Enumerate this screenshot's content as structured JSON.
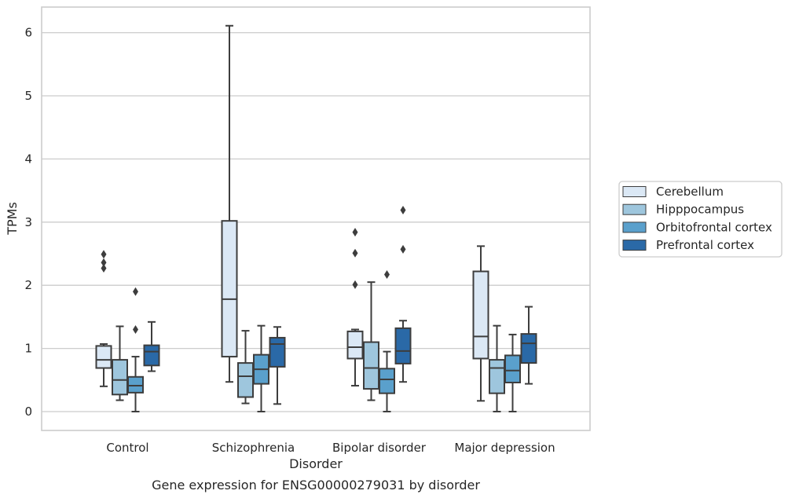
{
  "chart_data": {
    "type": "box",
    "caption": "Gene expression for ENSG00000279031 by disorder",
    "xlabel": "Disorder",
    "ylabel": "TPMs",
    "ylim": [
      -0.3,
      6.4
    ],
    "yticks": [
      0,
      1,
      2,
      3,
      4,
      5,
      6
    ],
    "grid": true,
    "legend_position": "right",
    "categories": [
      "Control",
      "Schizophrenia",
      "Bipolar disorder",
      "Major depression"
    ],
    "series": [
      {
        "name": "Cerebellum",
        "color": "#dbe8f5",
        "boxes": [
          {
            "whislo": 0.4,
            "q1": 0.69,
            "med": 0.82,
            "q3": 1.04,
            "whishi": 1.07,
            "fliers": [
              2.49,
              2.36,
              2.27
            ]
          },
          {
            "whislo": 0.47,
            "q1": 0.87,
            "med": 1.78,
            "q3": 3.02,
            "whishi": 6.11,
            "fliers": []
          },
          {
            "whislo": 0.41,
            "q1": 0.84,
            "med": 1.02,
            "q3": 1.27,
            "whishi": 1.3,
            "fliers": [
              2.84,
              2.51,
              2.01
            ]
          },
          {
            "whislo": 0.17,
            "q1": 0.84,
            "med": 1.19,
            "q3": 2.22,
            "whishi": 2.62,
            "fliers": []
          }
        ]
      },
      {
        "name": "Hipppocampus",
        "color": "#9ec6dd",
        "boxes": [
          {
            "whislo": 0.18,
            "q1": 0.27,
            "med": 0.5,
            "q3": 0.82,
            "whishi": 1.35,
            "fliers": []
          },
          {
            "whislo": 0.13,
            "q1": 0.23,
            "med": 0.56,
            "q3": 0.77,
            "whishi": 1.28,
            "fliers": []
          },
          {
            "whislo": 0.18,
            "q1": 0.36,
            "med": 0.69,
            "q3": 1.1,
            "whishi": 2.05,
            "fliers": []
          },
          {
            "whislo": 0.0,
            "q1": 0.29,
            "med": 0.69,
            "q3": 0.82,
            "whishi": 1.36,
            "fliers": []
          }
        ]
      },
      {
        "name": "Orbitofrontal cortex",
        "color": "#5aa0cc",
        "boxes": [
          {
            "whislo": 0.0,
            "q1": 0.3,
            "med": 0.41,
            "q3": 0.55,
            "whishi": 0.87,
            "fliers": [
              1.9,
              1.3
            ]
          },
          {
            "whislo": 0.0,
            "q1": 0.44,
            "med": 0.67,
            "q3": 0.9,
            "whishi": 1.36,
            "fliers": []
          },
          {
            "whislo": 0.0,
            "q1": 0.29,
            "med": 0.51,
            "q3": 0.68,
            "whishi": 0.95,
            "fliers": [
              2.17
            ]
          },
          {
            "whislo": 0.0,
            "q1": 0.46,
            "med": 0.65,
            "q3": 0.89,
            "whishi": 1.22,
            "fliers": []
          }
        ]
      },
      {
        "name": "Prefrontal cortex",
        "color": "#2a69a7",
        "boxes": [
          {
            "whislo": 0.64,
            "q1": 0.73,
            "med": 0.95,
            "q3": 1.05,
            "whishi": 1.42,
            "fliers": []
          },
          {
            "whislo": 0.12,
            "q1": 0.71,
            "med": 1.07,
            "q3": 1.17,
            "whishi": 1.34,
            "fliers": []
          },
          {
            "whislo": 0.47,
            "q1": 0.76,
            "med": 0.96,
            "q3": 1.32,
            "whishi": 1.44,
            "fliers": [
              3.19,
              2.57
            ]
          },
          {
            "whislo": 0.44,
            "q1": 0.77,
            "med": 1.08,
            "q3": 1.23,
            "whishi": 1.66,
            "fliers": []
          }
        ]
      }
    ]
  }
}
